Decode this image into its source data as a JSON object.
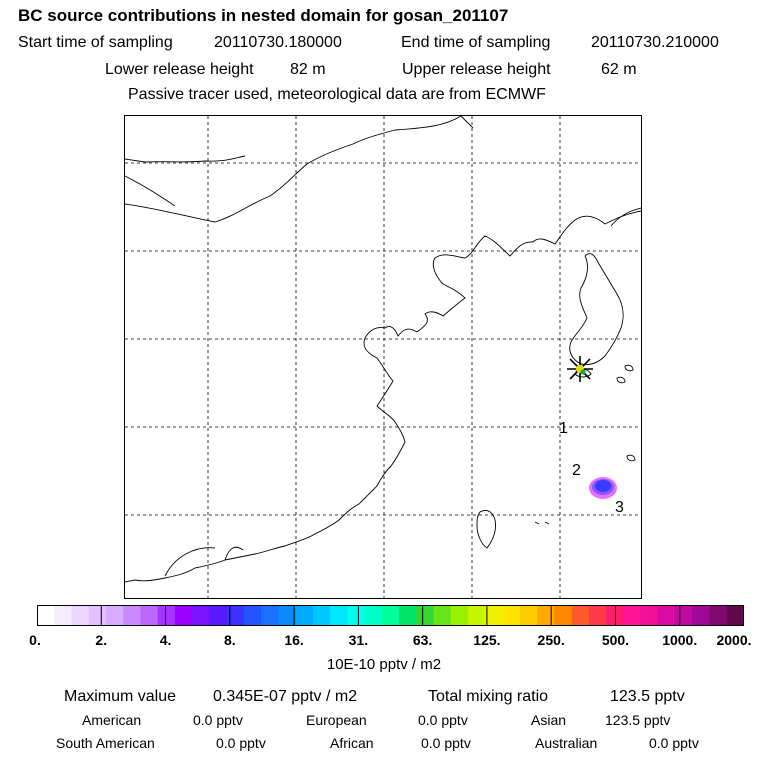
{
  "header": {
    "title": "BC  source contributions in nested domain for gosan_201107",
    "start_label": "Start time of sampling",
    "start_value": "20110730.180000",
    "end_label": "End time of sampling",
    "end_value": "20110730.210000",
    "lower_label": "Lower release height",
    "lower_value": "82 m",
    "upper_label": "Upper release height",
    "upper_value": "62 m",
    "note": "Passive tracer used, meteorological data are from ECMWF"
  },
  "map": {
    "markers": [
      {
        "label": "1"
      },
      {
        "label": "2"
      },
      {
        "label": "3"
      }
    ],
    "station_symbol": "star-marker",
    "plume_color": "#3b3bff"
  },
  "colorbar": {
    "colors": [
      "#ffffff",
      "#f6ebff",
      "#ecd6ff",
      "#e2c1ff",
      "#d8acff",
      "#cc88ff",
      "#bb66ff",
      "#a633ff",
      "#9900ff",
      "#7a14ff",
      "#5a1aff",
      "#3b30ff",
      "#2255ff",
      "#1a70ff",
      "#0a8cff",
      "#00aaff",
      "#00c8ff",
      "#00e6ff",
      "#00ffee",
      "#00ffc8",
      "#00ff99",
      "#00e566",
      "#33d633",
      "#66e61a",
      "#99f000",
      "#c8f500",
      "#eef000",
      "#ffe600",
      "#ffcc00",
      "#ffaa00",
      "#ff8800",
      "#ff5a2d",
      "#ff3a4a",
      "#ff1e6e",
      "#ff1493",
      "#f0109a",
      "#d80ca0",
      "#c00aa0",
      "#a0089a",
      "#800870",
      "#60084a"
    ],
    "ticks": [
      "0.",
      "2.",
      "4.",
      "8.",
      "16.",
      "31.",
      "63.",
      "125.",
      "250.",
      "500.",
      "1000.",
      "2000."
    ],
    "units": "10E-10 pptv / m2"
  },
  "stats": {
    "max_label": "Maximum value",
    "max_value": "0.345E-07 pptv / m2",
    "total_label": "Total mixing ratio",
    "total_value": "123.5 pptv",
    "american_label": "American",
    "american_value": "0.0 pptv",
    "european_label": "European",
    "european_value": "0.0 pptv",
    "asian_label": "Asian",
    "asian_value": "123.5 pptv",
    "south_american_label": "South American",
    "south_american_value": "0.0 pptv",
    "african_label": "African",
    "african_value": "0.0 pptv",
    "australian_label": "Australian",
    "australian_value": "0.0 pptv"
  }
}
